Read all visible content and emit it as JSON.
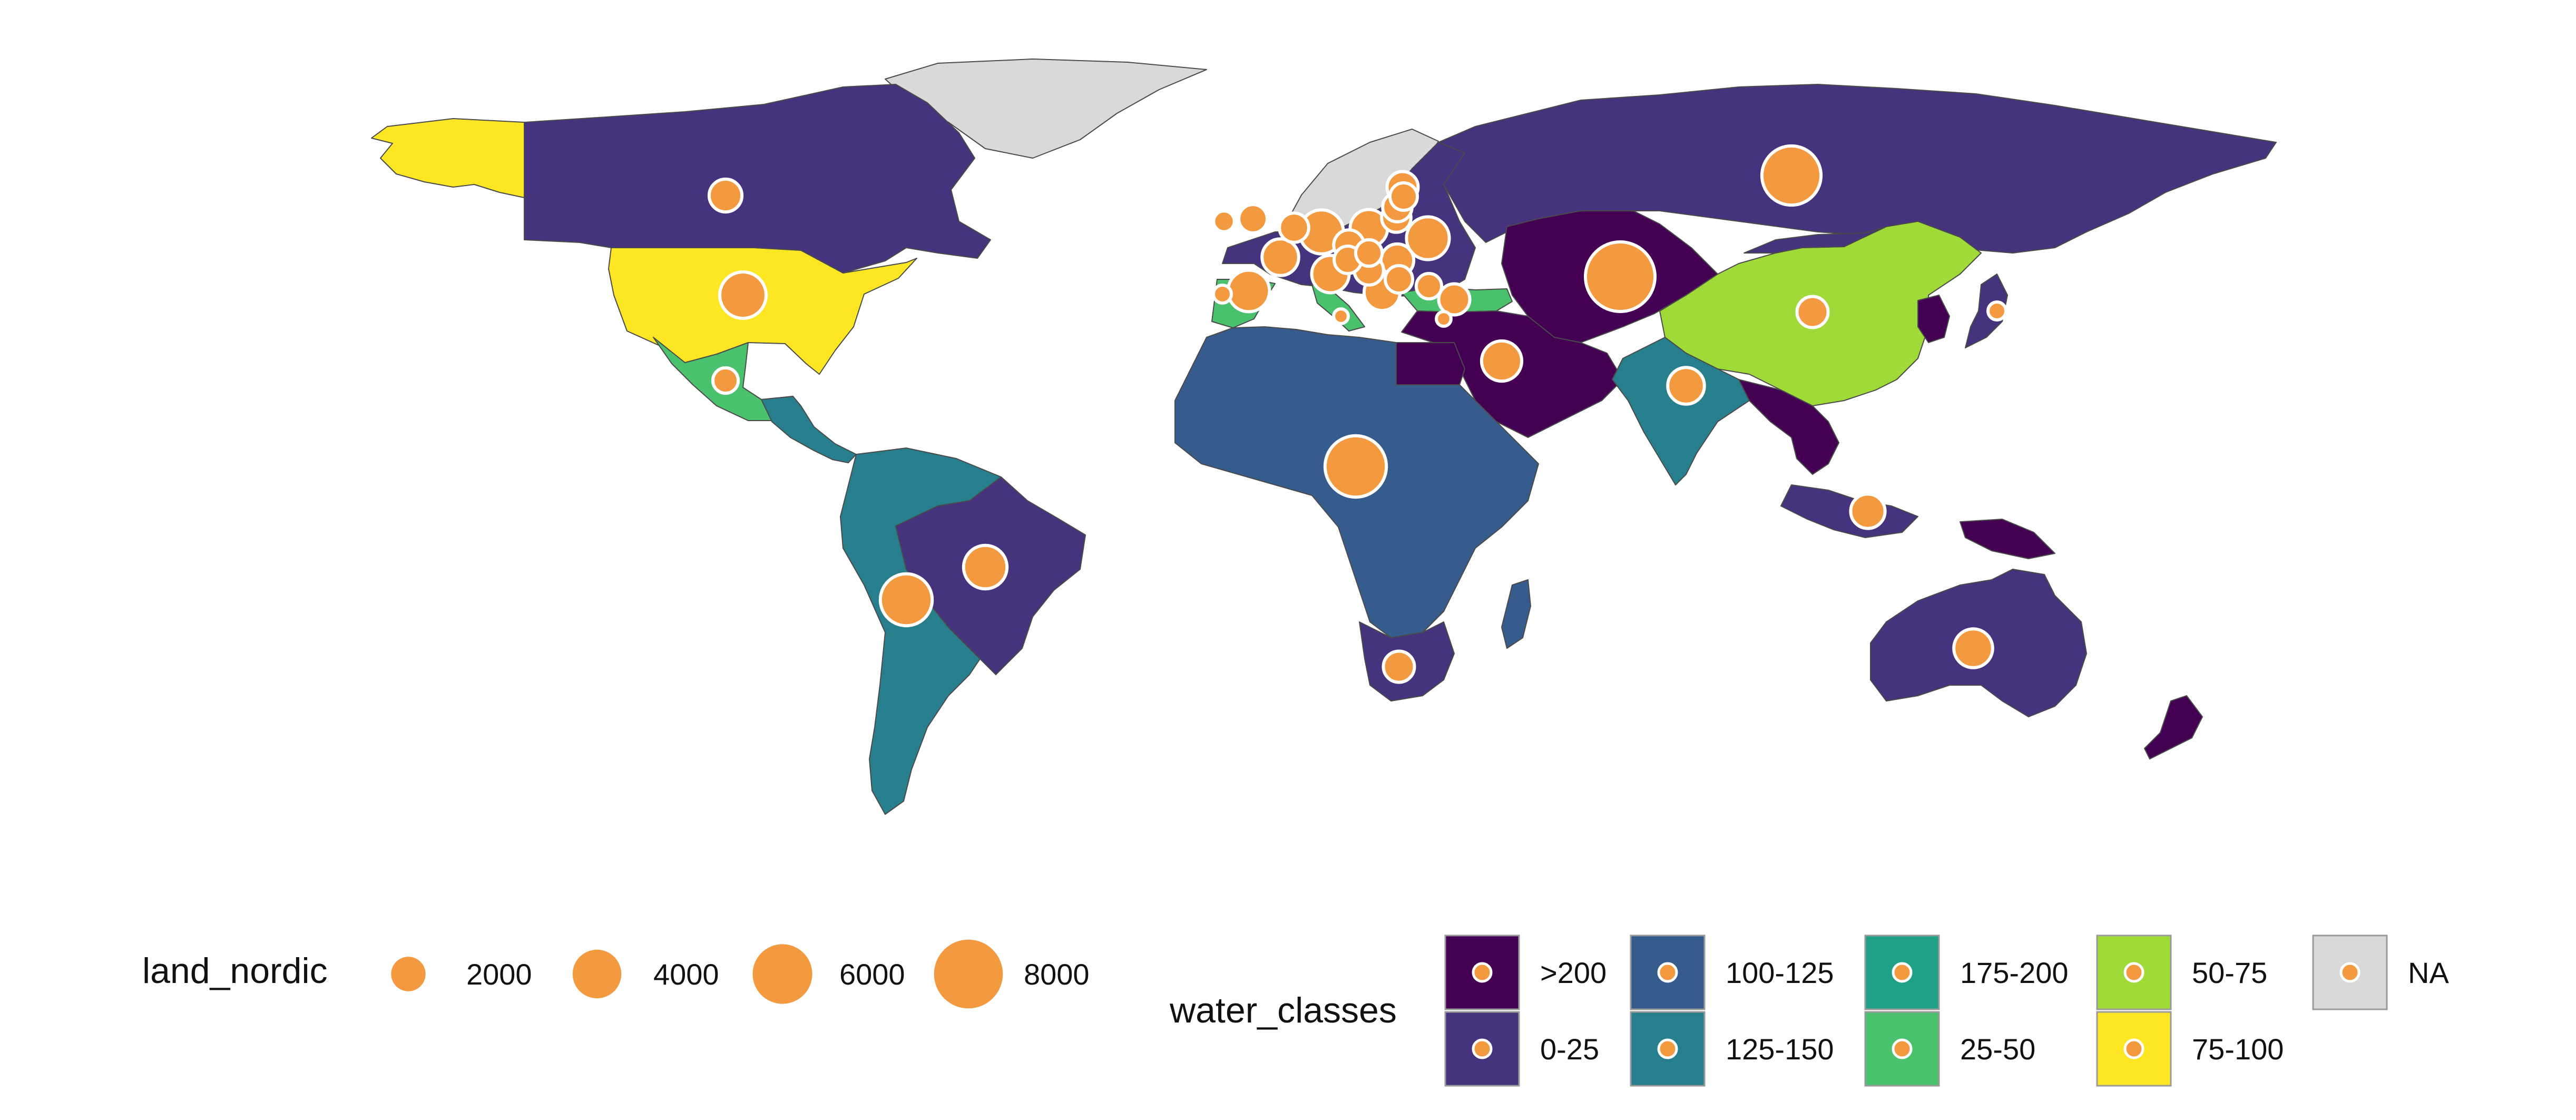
{
  "map": {
    "regions": [
      {
        "name": "greenland",
        "class": "NA"
      },
      {
        "name": "alaska",
        "class": "75-100"
      },
      {
        "name": "canada",
        "class": "0-25"
      },
      {
        "name": "usa",
        "class": "75-100"
      },
      {
        "name": "mexico",
        "class": "25-50"
      },
      {
        "name": "central-america",
        "class": "125-150"
      },
      {
        "name": "south-america",
        "class": "125-150"
      },
      {
        "name": "brazil-bolivia",
        "class": "0-25"
      },
      {
        "name": "scandinavia",
        "class": "NA"
      },
      {
        "name": "europe",
        "class": "0-25"
      },
      {
        "name": "iberia",
        "class": "25-50"
      },
      {
        "name": "italy",
        "class": "25-50"
      },
      {
        "name": "turkey",
        "class": "25-50"
      },
      {
        "name": "russia",
        "class": "0-25"
      },
      {
        "name": "central-asia",
        "class": ">200"
      },
      {
        "name": "middle-east",
        "class": ">200"
      },
      {
        "name": "egypt",
        "class": ">200"
      },
      {
        "name": "china",
        "class": "50-75"
      },
      {
        "name": "mongolia",
        "class": "0-25"
      },
      {
        "name": "korea",
        "class": ">200"
      },
      {
        "name": "japan",
        "class": "0-25"
      },
      {
        "name": "india",
        "class": "125-150"
      },
      {
        "name": "southeast-asia",
        "class": ">200"
      },
      {
        "name": "indonesia",
        "class": "0-25"
      },
      {
        "name": "papua",
        "class": ">200"
      },
      {
        "name": "africa",
        "class": "100-125"
      },
      {
        "name": "southern-africa",
        "class": "0-25"
      },
      {
        "name": "madagascar",
        "class": "100-125"
      },
      {
        "name": "australia",
        "class": "0-25"
      },
      {
        "name": "new-zealand",
        "class": ">200"
      }
    ],
    "bubbles": [
      {
        "name": "canada",
        "land_nordic": 2000
      },
      {
        "name": "usa",
        "land_nordic": 4000
      },
      {
        "name": "mexico",
        "land_nordic": 1200
      },
      {
        "name": "brazil",
        "land_nordic": 3500
      },
      {
        "name": "bolivia",
        "land_nordic": 5000
      },
      {
        "name": "russia",
        "land_nordic": 6500
      },
      {
        "name": "central-asia",
        "land_nordic": 9000
      },
      {
        "name": "china",
        "land_nordic": 1800
      },
      {
        "name": "japan",
        "land_nordic": 600
      },
      {
        "name": "india",
        "land_nordic": 2500
      },
      {
        "name": "middle-east",
        "land_nordic": 3000
      },
      {
        "name": "africa",
        "land_nordic": 7000
      },
      {
        "name": "southern-africa",
        "land_nordic": 1800
      },
      {
        "name": "indonesia",
        "land_nordic": 2200
      },
      {
        "name": "australia",
        "land_nordic": 2800
      },
      {
        "name": "iberia",
        "land_nordic": 3200
      },
      {
        "name": "france",
        "land_nordic": 2500
      },
      {
        "name": "uk",
        "land_nordic": 1500
      },
      {
        "name": "ireland",
        "land_nordic": 800
      },
      {
        "name": "germany",
        "land_nordic": 3600
      },
      {
        "name": "benelux",
        "land_nordic": 1600
      },
      {
        "name": "poland",
        "land_nordic": 2600
      },
      {
        "name": "ukraine",
        "land_nordic": 3400
      },
      {
        "name": "belarus",
        "land_nordic": 1600
      },
      {
        "name": "baltics-1",
        "land_nordic": 1600
      },
      {
        "name": "baltics-2",
        "land_nordic": 1400
      },
      {
        "name": "finland",
        "land_nordic": 1800
      },
      {
        "name": "czechia",
        "land_nordic": 1700
      },
      {
        "name": "austria",
        "land_nordic": 1400
      },
      {
        "name": "hungary",
        "land_nordic": 1300
      },
      {
        "name": "romania",
        "land_nordic": 2000
      },
      {
        "name": "balkans",
        "land_nordic": 1600
      },
      {
        "name": "bulgaria",
        "land_nordic": 1400
      },
      {
        "name": "italy",
        "land_nordic": 2600
      },
      {
        "name": "greece",
        "land_nordic": 2400
      },
      {
        "name": "turkey",
        "land_nordic": 1800
      },
      {
        "name": "caucasus",
        "land_nordic": 1200
      },
      {
        "name": "portugal",
        "land_nordic": 600
      },
      {
        "name": "cyprus",
        "land_nordic": 400
      },
      {
        "name": "tunisia",
        "land_nordic": 400
      }
    ]
  },
  "legend": {
    "size": {
      "title": "land_nordic",
      "color": "#F39A41",
      "items": [
        {
          "label": "2000",
          "value": 2000
        },
        {
          "label": "4000",
          "value": 4000
        },
        {
          "label": "6000",
          "value": 6000
        },
        {
          "label": "8000",
          "value": 8000
        }
      ]
    },
    "fill": {
      "title": "water_classes",
      "items": [
        {
          "label": ">200",
          "color": "#440154"
        },
        {
          "label": "0-25",
          "color": "#46337E"
        },
        {
          "label": "100-125",
          "color": "#365C8D"
        },
        {
          "label": "125-150",
          "color": "#277F8E"
        },
        {
          "label": "175-200",
          "color": "#1FA187"
        },
        {
          "label": "25-50",
          "color": "#4AC16D"
        },
        {
          "label": "50-75",
          "color": "#A0DA39"
        },
        {
          "label": "75-100",
          "color": "#FDE725"
        },
        {
          "label": "NA",
          "color": "#D9D9D9"
        }
      ]
    }
  }
}
